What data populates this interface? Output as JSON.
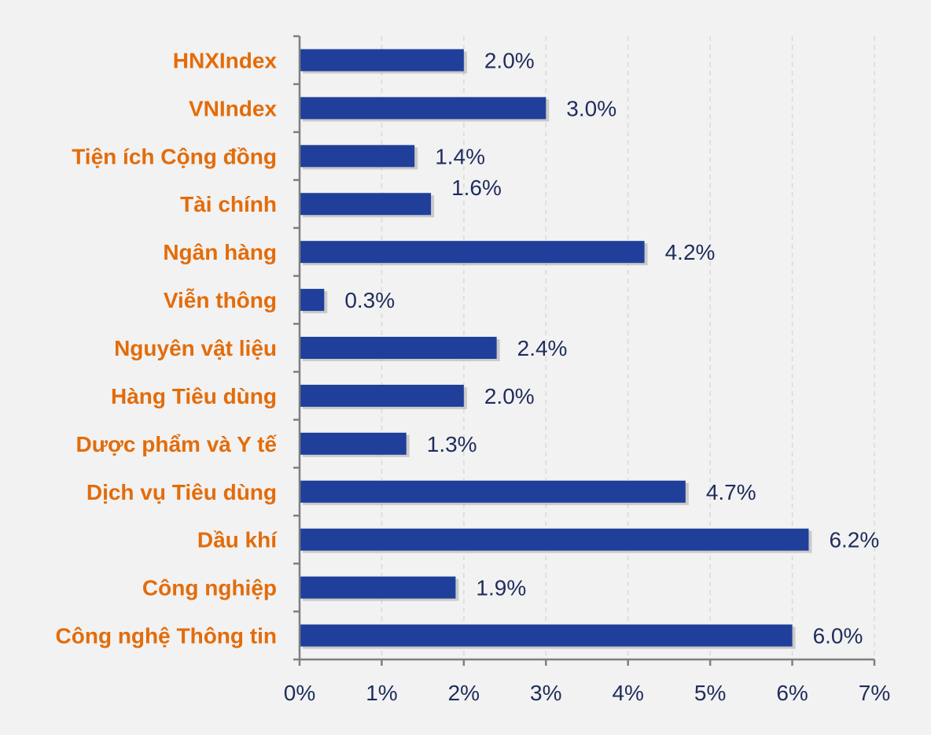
{
  "chart_data": {
    "type": "bar",
    "orientation": "horizontal",
    "categories": [
      "HNXIndex",
      "VNIndex",
      "Tiện ích Cộng đồng",
      "Tài chính",
      "Ngân hàng",
      "Viễn thông",
      "Nguyên vật liệu",
      "Hàng Tiêu dùng",
      "Dược phẩm và Y tế",
      "Dịch vụ Tiêu dùng",
      "Dầu khí",
      "Công nghiệp",
      "Công nghệ Thông tin"
    ],
    "values": [
      2.0,
      3.0,
      1.4,
      1.6,
      4.2,
      0.3,
      2.4,
      2.0,
      1.3,
      4.7,
      6.2,
      1.9,
      6.0
    ],
    "data_labels": [
      "2.0%",
      "3.0%",
      "1.4%",
      "1.6%",
      "4.2%",
      "0.3%",
      "2.4%",
      "2.0%",
      "1.3%",
      "4.7%",
      "6.2%",
      "1.9%",
      "6.0%"
    ],
    "x_ticks": [
      "0%",
      "1%",
      "2%",
      "3%",
      "4%",
      "5%",
      "6%",
      "7%"
    ],
    "xlim": [
      0,
      7
    ],
    "title": "",
    "xlabel": "",
    "ylabel": "",
    "grid": "vertical dashed",
    "legend": "none",
    "colors": {
      "bar": "#1f3f9a",
      "category_label": "#e36c0a",
      "value_label": "#1f2d5c",
      "axis": "#7f7f7f",
      "grid": "#d9d9d9",
      "background": "#f2f2f2"
    }
  }
}
